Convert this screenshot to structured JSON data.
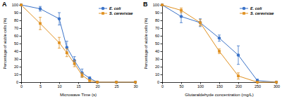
{
  "chart_data": [
    {
      "type": "line",
      "title": "A",
      "x_label": "Microwave Time (s)",
      "y_label": "Percentage of viable cells (%)",
      "x": [
        0,
        5,
        10,
        12,
        14,
        16,
        18,
        20,
        25,
        30
      ],
      "series": [
        {
          "name": "E. coli",
          "color": "#3b73c8",
          "marker": "circle",
          "values": [
            100,
            95,
            82,
            45,
            28,
            12,
            5,
            0,
            0,
            0
          ],
          "errors": [
            0,
            3,
            8,
            8,
            5,
            5,
            2,
            0,
            0,
            0
          ]
        },
        {
          "name": "S. cerevisiae",
          "color": "#e0901f",
          "marker": "square",
          "values": [
            100,
            76,
            51,
            38,
            24,
            9,
            2,
            0,
            0,
            0
          ],
          "errors": [
            0,
            8,
            7,
            5,
            4,
            3,
            1,
            0,
            0,
            0
          ]
        }
      ],
      "xlim": [
        0,
        30
      ],
      "xticks": [
        0,
        5,
        10,
        15,
        20,
        25,
        30
      ],
      "ylim": [
        0,
        100
      ],
      "yticks": [
        0,
        10,
        20,
        30,
        40,
        50,
        60,
        70,
        80,
        90,
        100
      ],
      "legend": "upper right"
    },
    {
      "type": "line",
      "title": "B",
      "x_label": "Glutaraldehyde concentration (mg/L)",
      "y_label": "Percentage of viable cells (%)",
      "x": [
        0,
        50,
        100,
        150,
        200,
        250,
        300
      ],
      "series": [
        {
          "name": "E. coli",
          "color": "#3b73c8",
          "marker": "circle",
          "values": [
            100,
            85,
            77,
            57,
            35,
            2,
            0
          ],
          "errors": [
            0,
            8,
            5,
            4,
            12,
            2,
            0
          ]
        },
        {
          "name": "S. cerevisiae",
          "color": "#e0901f",
          "marker": "square",
          "values": [
            100,
            93,
            77,
            40,
            8,
            0,
            0
          ],
          "errors": [
            0,
            3,
            4,
            3,
            4,
            0,
            0
          ]
        }
      ],
      "xlim": [
        0,
        300
      ],
      "xticks": [
        0,
        50,
        100,
        150,
        200,
        250,
        300
      ],
      "ylim": [
        0,
        100
      ],
      "yticks": [
        0,
        10,
        20,
        30,
        40,
        50,
        60,
        70,
        80,
        90,
        100
      ],
      "legend": "upper right"
    }
  ]
}
